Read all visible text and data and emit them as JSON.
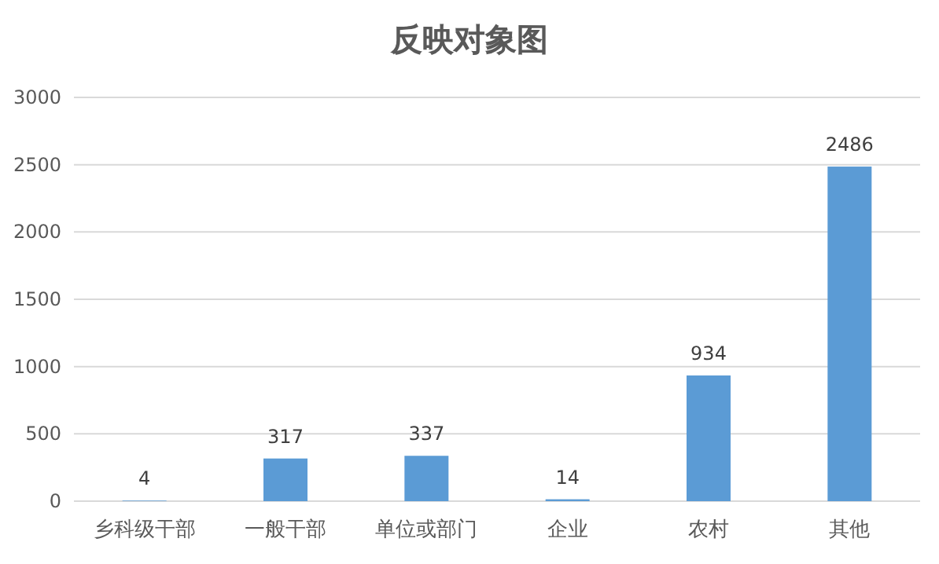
{
  "chart_data": {
    "type": "bar",
    "title": "反映对象图",
    "categories": [
      "乡科级干部",
      "一般干部",
      "单位或部门",
      "企业",
      "农村",
      "其他"
    ],
    "values": [
      4,
      317,
      337,
      14,
      934,
      2486
    ],
    "color": "#5b9bd5",
    "ylim": [
      0,
      3000
    ],
    "yticks": [
      0,
      500,
      1000,
      1500,
      2000,
      2500,
      3000
    ],
    "grid": "y",
    "data_labels": true
  }
}
